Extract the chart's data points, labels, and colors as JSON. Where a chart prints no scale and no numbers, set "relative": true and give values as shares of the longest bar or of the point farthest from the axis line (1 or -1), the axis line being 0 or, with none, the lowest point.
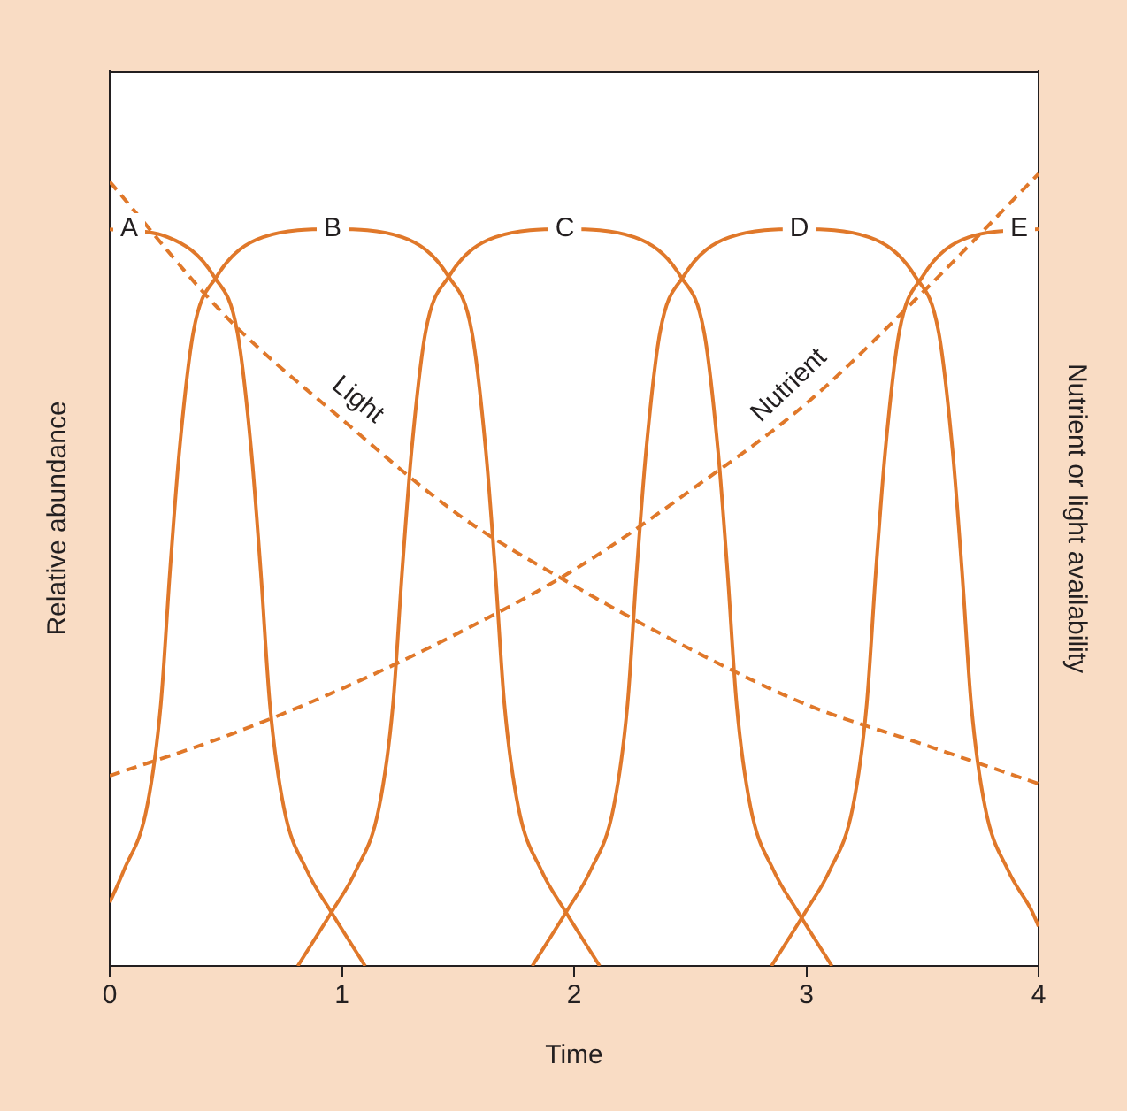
{
  "chart_data": {
    "type": "line",
    "relative": true,
    "xlabel": "Time",
    "ylabel": "Relative abundance",
    "y2label": "Nutrient or light availability",
    "xlim": [
      0,
      4
    ],
    "xticks": [
      0,
      1,
      2,
      3,
      4
    ],
    "marker": "none",
    "series": [
      {
        "name": "A",
        "color": "#e0782a",
        "line_style": "solid",
        "x": [
          0,
          0.25,
          0.45,
          0.55,
          0.61,
          0.65,
          0.69,
          0.75,
          0.85,
          0.95,
          1.1
        ],
        "values": [
          0.93,
          0.92,
          0.87,
          0.8,
          0.65,
          0.5,
          0.33,
          0.2,
          0.12,
          0.07,
          0
        ]
      },
      {
        "name": "B",
        "color": "#e0782a",
        "line_style": "solid",
        "x": [
          0,
          0.06,
          0.16,
          0.22,
          0.26,
          0.3,
          0.36,
          0.46,
          0.66,
          0.96,
          1.26,
          1.46,
          1.56,
          1.62,
          1.66,
          1.7,
          1.76,
          1.86,
          1.96,
          2.11
        ],
        "values": [
          0.08,
          0.12,
          0.2,
          0.33,
          0.5,
          0.65,
          0.8,
          0.87,
          0.92,
          0.93,
          0.92,
          0.87,
          0.8,
          0.65,
          0.5,
          0.33,
          0.2,
          0.12,
          0.07,
          0
        ]
      },
      {
        "name": "C",
        "color": "#e0782a",
        "line_style": "solid",
        "x": [
          0.81,
          0.96,
          1.06,
          1.16,
          1.22,
          1.26,
          1.3,
          1.36,
          1.46,
          1.66,
          1.96,
          2.26,
          2.46,
          2.56,
          2.62,
          2.66,
          2.7,
          2.76,
          2.86,
          2.96,
          3.11
        ],
        "values": [
          0,
          0.07,
          0.12,
          0.2,
          0.33,
          0.5,
          0.65,
          0.8,
          0.87,
          0.92,
          0.93,
          0.92,
          0.87,
          0.8,
          0.65,
          0.5,
          0.33,
          0.2,
          0.12,
          0.07,
          0
        ]
      },
      {
        "name": "D",
        "color": "#e0782a",
        "line_style": "solid",
        "x": [
          1.82,
          1.97,
          2.07,
          2.17,
          2.23,
          2.27,
          2.31,
          2.37,
          2.47,
          2.67,
          2.97,
          3.27,
          3.47,
          3.57,
          3.63,
          3.67,
          3.71,
          3.77,
          3.87,
          3.97,
          4
        ],
        "values": [
          0,
          0.07,
          0.12,
          0.2,
          0.33,
          0.5,
          0.65,
          0.8,
          0.87,
          0.92,
          0.93,
          0.92,
          0.87,
          0.8,
          0.65,
          0.5,
          0.33,
          0.2,
          0.12,
          0.07,
          0.05
        ]
      },
      {
        "name": "E",
        "color": "#e0782a",
        "line_style": "solid",
        "x": [
          2.85,
          3,
          3.1,
          3.2,
          3.26,
          3.3,
          3.34,
          3.4,
          3.5,
          3.7,
          4
        ],
        "values": [
          0,
          0.07,
          0.12,
          0.2,
          0.33,
          0.5,
          0.65,
          0.8,
          0.87,
          0.92,
          0.93
        ]
      },
      {
        "name": "Light",
        "color": "#e0782a",
        "line_style": "dashed",
        "x": [
          0,
          0.5,
          1,
          1.5,
          2,
          2.5,
          3,
          3.5,
          4
        ],
        "values": [
          0.99,
          0.82,
          0.69,
          0.57,
          0.48,
          0.4,
          0.33,
          0.28,
          0.23
        ]
      },
      {
        "name": "Nutrient",
        "color": "#e0782a",
        "line_style": "dashed",
        "x": [
          0,
          0.5,
          1,
          1.5,
          2,
          2.5,
          3,
          3.5,
          4
        ],
        "values": [
          0.24,
          0.29,
          0.35,
          0.42,
          0.5,
          0.6,
          0.71,
          0.85,
          1
        ]
      }
    ]
  }
}
